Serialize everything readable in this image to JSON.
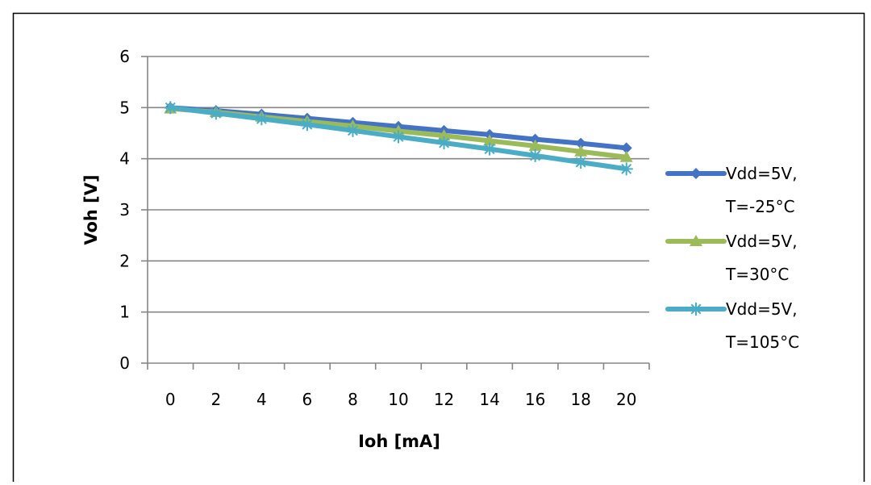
{
  "chart_data": {
    "type": "line",
    "title": "",
    "xlabel": "Ioh [mA]",
    "ylabel": "Voh [V]",
    "categories": [
      "0",
      "2",
      "4",
      "6",
      "8",
      "10",
      "12",
      "14",
      "16",
      "18",
      "20"
    ],
    "ylim": [
      0,
      6
    ],
    "yticks": [
      "0",
      "1",
      "2",
      "3",
      "4",
      "5",
      "6"
    ],
    "grid": true,
    "legend_position": "right",
    "series": [
      {
        "name_line1": "Vdd=5V,",
        "name_line2": "T=-25°C",
        "color": "#4472C4",
        "marker": "diamond",
        "values": [
          5.0,
          4.94,
          4.87,
          4.79,
          4.71,
          4.63,
          4.55,
          4.47,
          4.38,
          4.3,
          4.21
        ]
      },
      {
        "name_line1": "Vdd=5V,",
        "name_line2": "T=30°C",
        "color": "#9BBB59",
        "marker": "triangle",
        "values": [
          4.98,
          4.91,
          4.82,
          4.73,
          4.64,
          4.54,
          4.45,
          4.35,
          4.25,
          4.14,
          4.03
        ]
      },
      {
        "name_line1": "Vdd=5V,",
        "name_line2": "T=105°C",
        "color": "#4BACC6",
        "marker": "star",
        "values": [
          5.0,
          4.89,
          4.78,
          4.67,
          4.55,
          4.43,
          4.31,
          4.19,
          4.06,
          3.93,
          3.8
        ]
      }
    ]
  }
}
